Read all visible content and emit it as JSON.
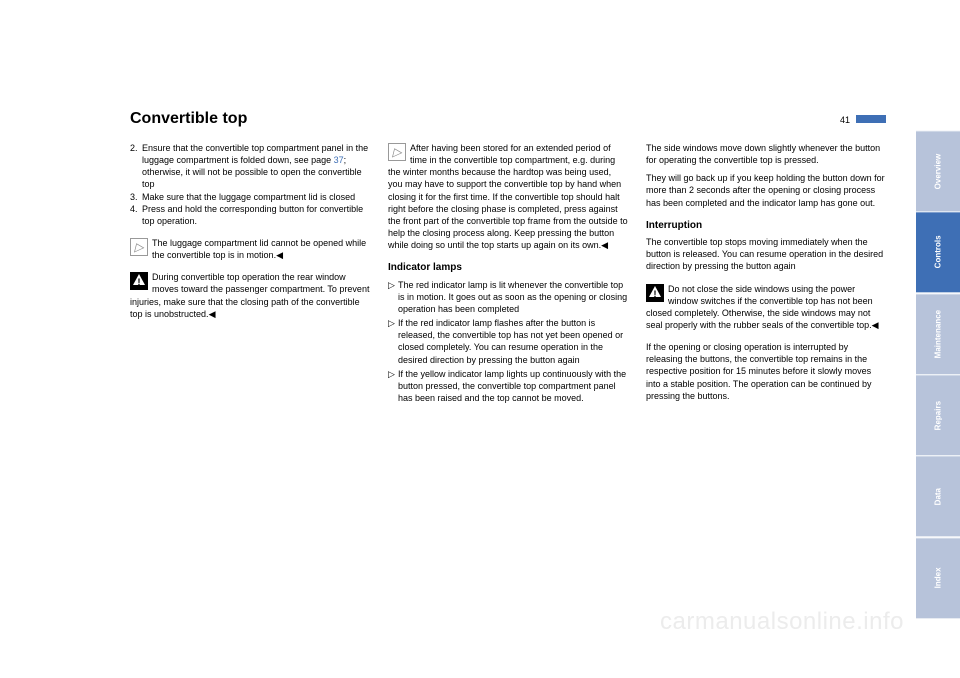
{
  "colors": {
    "accent": "#3e6fb5",
    "tab_inactive": "#b7c3da",
    "text": "#000000",
    "watermark": "#ececec"
  },
  "page": {
    "title": "Convertible top",
    "number": "41"
  },
  "col1": {
    "list": [
      {
        "num": "2.",
        "text_a": "Ensure that the convertible top compartment panel in the luggage compartment is folded down, see page ",
        "link": "37",
        "text_b": "; otherwise, it will not be possible to open the convertible top"
      },
      {
        "num": "3.",
        "text_a": "Make sure that the luggage compartment lid is closed",
        "link": "",
        "text_b": ""
      },
      {
        "num": "4.",
        "text_a": "Press and hold the corresponding button for convertible top operation.",
        "link": "",
        "text_b": ""
      }
    ],
    "note1": "The luggage compartment lid cannot be opened while the convertible top is in motion.",
    "note2": "During convertible top operation the rear window moves toward the passenger compartment. To prevent injuries, make sure that the closing path of the convertible top is unobstructed."
  },
  "col2": {
    "note1": "After having been stored for an extended period of time in the convertible top compartment, e.g. during the winter months because the hardtop was being used, you may have to support the convertible top by hand when closing it for the first time. If the convertible top should halt right before the closing phase is completed, press against the front part of the convertible top frame from the outside to help the closing process along. Keep pressing the button while doing so until the top starts up again on its own.",
    "subhead": "Indicator lamps",
    "bullets": [
      "The red indicator lamp is lit whenever the convertible top is in motion. It goes out as soon as the opening or closing operation has been completed",
      "If the red indicator lamp flashes after the button is released, the convertible top has not yet been opened or closed completely. You can resume operation in the desired direction by pressing the button again",
      "If the yellow indicator lamp lights up continuously with the button pressed, the convertible top compartment panel has been raised and the top cannot be moved."
    ]
  },
  "col3": {
    "para1": "The side windows move down slightly whenever the button for operating the convertible top is pressed.",
    "para2": "They will go back up if you keep holding the button down for more than 2 seconds after the opening or closing process has been completed and the indicator lamp has gone out.",
    "subhead": "Interruption",
    "para3": "The convertible top stops moving immediately when the button is released. You can resume operation in the desired direction by pressing the button again",
    "note1": "Do not close the side windows using the power window switches if the convertible top has not been closed completely. Otherwise, the side windows may not seal properly with the rubber seals of the convertible top.",
    "para4": "If the opening or closing operation is interrupted by releasing the buttons, the convertible top remains in the respective position for 15 minutes before it slowly moves into a stable position. The operation can be continued by pressing the buttons."
  },
  "tabs": [
    {
      "label": "Overview",
      "active": false
    },
    {
      "label": "Controls",
      "active": true
    },
    {
      "label": "Maintenance",
      "active": false
    },
    {
      "label": "Repairs",
      "active": false
    },
    {
      "label": "Data",
      "active": false
    },
    {
      "label": "Index",
      "active": false
    }
  ],
  "watermark": "carmanualsonline.info",
  "end_mark": "◀",
  "bullet_mark": "▷"
}
